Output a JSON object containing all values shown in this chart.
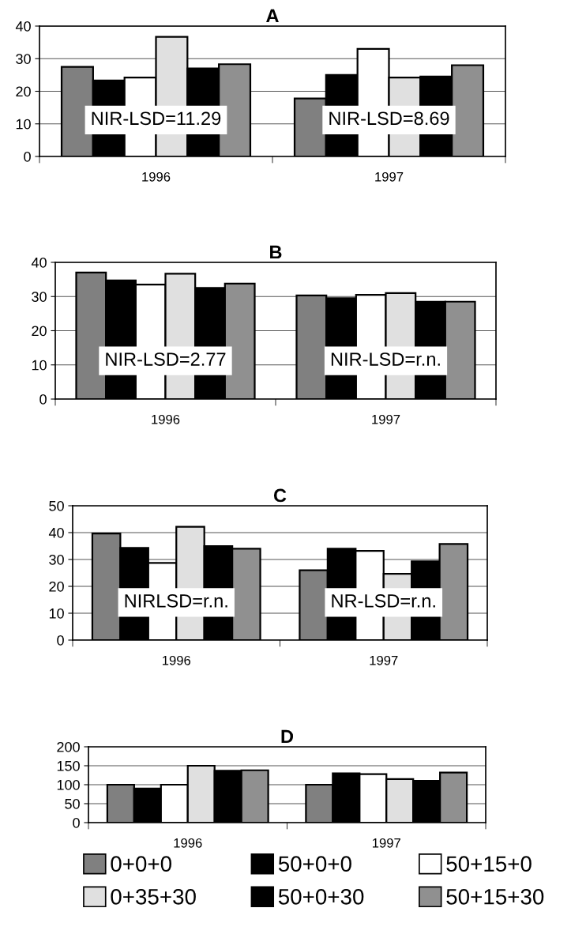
{
  "chart_data": [
    {
      "type": "bar",
      "title": "A",
      "categories": [
        "1996",
        "1997"
      ],
      "ylim": [
        0,
        40
      ],
      "yticks": [
        0,
        10,
        20,
        30,
        40
      ],
      "grid": "y",
      "annotations": [
        "NIR-LSD=11.29",
        "NIR-LSD=8.69"
      ],
      "series": [
        {
          "color": "#808080",
          "values": [
            27.5,
            17.8
          ]
        },
        {
          "color": "#000000",
          "values": [
            23.3,
            25
          ]
        },
        {
          "color": "#ffffff",
          "values": [
            24.2,
            33
          ]
        },
        {
          "color": "#e0e0e0",
          "values": [
            36.7,
            24.2
          ]
        },
        {
          "color": "#000000",
          "values": [
            27,
            24.5
          ]
        },
        {
          "color": "#909090",
          "values": [
            28.3,
            28
          ]
        }
      ]
    },
    {
      "type": "bar",
      "title": "B",
      "categories": [
        "1996",
        "1997"
      ],
      "ylim": [
        0,
        40
      ],
      "yticks": [
        0,
        10,
        20,
        30,
        40
      ],
      "grid": "y",
      "annotations": [
        "NIR-LSD=2.77",
        "NIR-LSD=r.n."
      ],
      "series": [
        {
          "color": "#808080",
          "values": [
            37,
            30.3
          ]
        },
        {
          "color": "#000000",
          "values": [
            34.7,
            29.5
          ]
        },
        {
          "color": "#ffffff",
          "values": [
            33.5,
            30.5
          ]
        },
        {
          "color": "#e0e0e0",
          "values": [
            36.7,
            31
          ]
        },
        {
          "color": "#000000",
          "values": [
            32.5,
            28.5
          ]
        },
        {
          "color": "#909090",
          "values": [
            33.8,
            28.5
          ]
        }
      ]
    },
    {
      "type": "bar",
      "title": "C",
      "categories": [
        "1996",
        "1997"
      ],
      "ylim": [
        0,
        50
      ],
      "yticks": [
        0,
        10,
        20,
        30,
        40,
        50
      ],
      "grid": "y",
      "annotations": [
        "NIRLSD=r.n.",
        "NR-LSD=r.n."
      ],
      "series": [
        {
          "color": "#808080",
          "values": [
            39.7,
            26
          ]
        },
        {
          "color": "#000000",
          "values": [
            34.3,
            34
          ]
        },
        {
          "color": "#ffffff",
          "values": [
            28.7,
            33.2
          ]
        },
        {
          "color": "#e0e0e0",
          "values": [
            42.2,
            24.7
          ]
        },
        {
          "color": "#000000",
          "values": [
            35,
            29.3
          ]
        },
        {
          "color": "#909090",
          "values": [
            34,
            35.8
          ]
        }
      ]
    },
    {
      "type": "bar",
      "title": "D",
      "categories": [
        "1996",
        "1997"
      ],
      "ylim": [
        0,
        200
      ],
      "yticks": [
        0,
        50,
        100,
        150,
        200
      ],
      "grid": "y",
      "legend": "bottom",
      "series": [
        {
          "name": "0+0+0",
          "color": "#808080",
          "values": [
            100,
            100
          ]
        },
        {
          "name": "50+0+0",
          "color": "#000000",
          "values": [
            90,
            130
          ]
        },
        {
          "name": "50+15+0",
          "color": "#ffffff",
          "values": [
            100,
            128
          ]
        },
        {
          "name": "0+35+30",
          "color": "#e0e0e0",
          "values": [
            150,
            115
          ]
        },
        {
          "name": "50+0+30",
          "color": "#000000",
          "values": [
            137,
            110
          ]
        },
        {
          "name": "50+15+30",
          "color": "#909090",
          "values": [
            138,
            132
          ]
        }
      ]
    }
  ]
}
